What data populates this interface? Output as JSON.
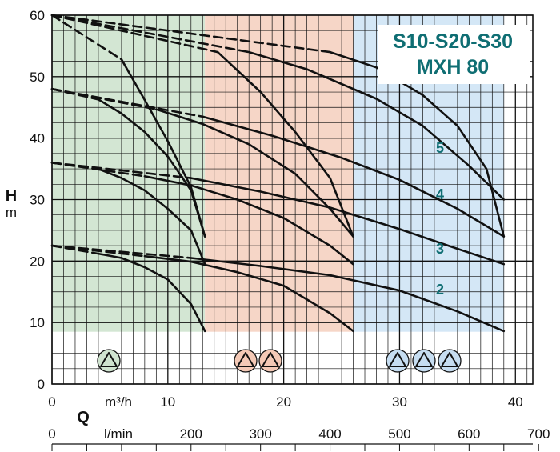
{
  "chart_data": {
    "type": "line",
    "title_line1": "S10-S20-S30",
    "title_line2": "MXH 80",
    "ylabel": "H",
    "yunit": "m",
    "x_primary_unit": "m³/h",
    "x_secondary_unit": "l/min",
    "x_symbol": "Q",
    "xlim": [
      0,
      40
    ],
    "ylim": [
      0,
      60
    ],
    "x_ticks": [
      "0",
      "10",
      "20",
      "30",
      "40"
    ],
    "y_ticks": [
      "0",
      "10",
      "20",
      "30",
      "40",
      "50",
      "60"
    ],
    "lmin_ticks": [
      "0",
      "200",
      "300",
      "400",
      "500",
      "600",
      "700"
    ],
    "grid": true,
    "curve_labels": [
      "2",
      "3",
      "4",
      "5"
    ],
    "zones": [
      {
        "name": "S10",
        "x": [
          0,
          13.2
        ],
        "y": [
          8.5,
          60
        ],
        "color": "#d3e6d3",
        "symbol_count": 1
      },
      {
        "name": "S20",
        "x": [
          13.2,
          26
        ],
        "y": [
          8.5,
          60
        ],
        "color": "#f6d6c7",
        "symbol_count": 2
      },
      {
        "name": "S30",
        "x": [
          26,
          39
        ],
        "y": [
          8.5,
          60
        ],
        "color": "#d4e7f6",
        "symbol_count": 3
      }
    ],
    "series": [
      {
        "solid": [
          [
            4,
            21.2
          ],
          [
            6,
            20.5
          ],
          [
            8,
            19
          ],
          [
            10,
            17
          ],
          [
            12,
            13
          ],
          [
            13.2,
            8.6
          ]
        ],
        "dashed": [
          [
            0,
            22.5
          ],
          [
            4,
            21.2
          ]
        ]
      },
      {
        "solid": [
          [
            4,
            35
          ],
          [
            6,
            33.5
          ],
          [
            8,
            31.5
          ],
          [
            10,
            28.5
          ],
          [
            12,
            25
          ],
          [
            13.2,
            19.5
          ]
        ],
        "dashed": [
          [
            0,
            36
          ],
          [
            4,
            35
          ]
        ]
      },
      {
        "solid": [
          [
            4,
            46.3
          ],
          [
            6,
            44
          ],
          [
            8,
            41
          ],
          [
            10,
            37
          ],
          [
            12,
            31.5
          ],
          [
            13.2,
            24
          ]
        ],
        "dashed": [
          [
            0,
            48
          ],
          [
            4,
            46.3
          ]
        ]
      },
      {
        "solid": [
          [
            8,
            20.8
          ],
          [
            12,
            19.9
          ],
          [
            16,
            18.2
          ],
          [
            20,
            16
          ],
          [
            24,
            11.5
          ],
          [
            26,
            8.6
          ]
        ],
        "dashed": [
          [
            0,
            22.5
          ],
          [
            8,
            20.8
          ]
        ]
      },
      {
        "solid": [
          [
            8,
            33.8
          ],
          [
            12,
            32.3
          ],
          [
            16,
            30
          ],
          [
            20,
            27
          ],
          [
            24,
            22.5
          ],
          [
            26,
            19.5
          ]
        ],
        "dashed": [
          [
            0,
            36
          ],
          [
            8,
            33.8
          ]
        ]
      },
      {
        "solid": [
          [
            9,
            44.7
          ],
          [
            13,
            42.3
          ],
          [
            17,
            39
          ],
          [
            21,
            34.2
          ],
          [
            24,
            28.5
          ],
          [
            26,
            24
          ]
        ],
        "dashed": [
          [
            0,
            48
          ],
          [
            9,
            44.7
          ]
        ]
      },
      {
        "solid": [
          [
            12,
            20.5
          ],
          [
            18,
            19.2
          ],
          [
            24,
            17.7
          ],
          [
            30,
            15.2
          ],
          [
            35,
            11.8
          ],
          [
            39,
            8.6
          ]
        ],
        "dashed": [
          [
            0,
            22.5
          ],
          [
            12,
            20.5
          ]
        ]
      },
      {
        "solid": [
          [
            12,
            33.5
          ],
          [
            18,
            31.3
          ],
          [
            24,
            28.7
          ],
          [
            30,
            25.2
          ],
          [
            35,
            22
          ],
          [
            39,
            19.5
          ]
        ],
        "dashed": [
          [
            0,
            36
          ],
          [
            12,
            33.5
          ]
        ]
      },
      {
        "solid": [
          [
            13,
            43.5
          ],
          [
            19,
            40.4
          ],
          [
            25,
            36.8
          ],
          [
            30,
            33.2
          ],
          [
            35,
            28.5
          ],
          [
            39,
            24
          ]
        ],
        "dashed": [
          [
            0,
            48
          ],
          [
            13,
            43.5
          ]
        ]
      },
      {
        "solid": [
          [
            17,
            54
          ],
          [
            22,
            51.2
          ],
          [
            28,
            46.4
          ],
          [
            32,
            42
          ],
          [
            36,
            35.5
          ],
          [
            39,
            30
          ]
        ],
        "dashed": [
          [
            0,
            60
          ],
          [
            17,
            54
          ]
        ]
      },
      {
        "solid": [
          [
            14.3,
            54
          ],
          [
            18,
            47.5
          ],
          [
            21,
            41
          ],
          [
            24,
            33.5
          ],
          [
            26,
            24
          ]
        ],
        "dashed": [
          [
            0,
            60
          ],
          [
            14.3,
            54
          ]
        ]
      },
      {
        "solid": [
          [
            6,
            52.8
          ],
          [
            8,
            46.2
          ],
          [
            10,
            39.5
          ],
          [
            12,
            32
          ],
          [
            13.2,
            24
          ]
        ],
        "dashed": [
          [
            0,
            60
          ],
          [
            6,
            52.8
          ]
        ]
      },
      {
        "solid": [
          [
            24,
            54
          ],
          [
            28,
            51.5
          ],
          [
            32,
            47
          ],
          [
            35,
            42
          ],
          [
            37.5,
            35
          ],
          [
            39,
            24
          ]
        ],
        "dashed": [
          [
            0,
            60
          ],
          [
            24,
            54
          ]
        ]
      }
    ]
  }
}
